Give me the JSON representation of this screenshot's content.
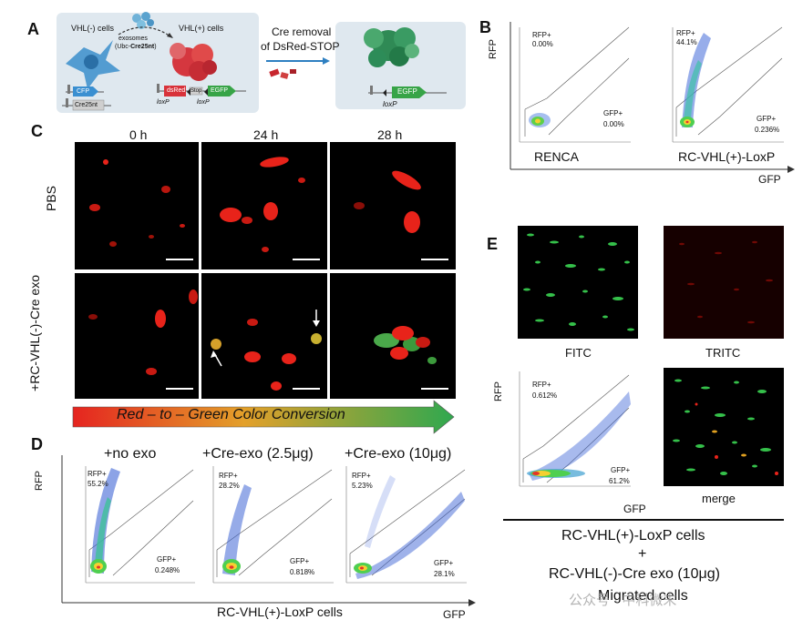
{
  "panel_letters": {
    "a": "A",
    "b": "B",
    "c": "C",
    "d": "D",
    "e": "E"
  },
  "panel_a": {
    "vhl_neg": "VHL(-) cells",
    "vhl_pos": "VHL(+) cells",
    "exosomes": "exosomes",
    "ubc_line": "(Ubc-",
    "ubc_bold": "Cre25nt",
    "ubc_close": ")",
    "cre_removal": "Cre removal",
    "of_dsred": "of DsRed-STOP",
    "cfp": "CFP",
    "cre25nt": "Cre25nt",
    "dsred": "dsRed",
    "stop": "Stop",
    "egfp": "EGFP",
    "egfp2": "EGFP",
    "loxp1": "loxP",
    "loxp2": "loxP",
    "loxp3": "loxP"
  },
  "panel_b": {
    "y_axis": "RFP",
    "x_axis": "GFP",
    "plot1": {
      "rfp_gate": "RFP+",
      "rfp_pct": "0.00%",
      "gfp_gate": "GFP+",
      "gfp_pct": "0.00%",
      "name": "RENCA"
    },
    "plot2": {
      "rfp_gate": "RFP+",
      "rfp_pct": "44.1%",
      "gfp_gate": "GFP+",
      "gfp_pct": "0.236%",
      "name": "RC-VHL(+)-LoxP"
    }
  },
  "panel_c": {
    "times": [
      "0 h",
      "24 h",
      "28 h"
    ],
    "row1": "PBS",
    "row2": "+RC-VHL(-)-Cre exo",
    "banner": "Red – to – Green Color Conversion",
    "colors": {
      "red": "#e8231a",
      "green": "#4aa84a",
      "banner_start": "#e52420",
      "banner_end": "#2fa84f"
    }
  },
  "panel_d": {
    "y_axis": "RFP",
    "x_axis": "GFP",
    "plots": [
      {
        "title": "+no exo",
        "rfp_gate": "RFP+",
        "rfp_pct": "55.2%",
        "gfp_gate": "GFP+",
        "gfp_pct": "0.248%"
      },
      {
        "title": "+Cre-exo (2.5μg)",
        "rfp_gate": "RFP+",
        "rfp_pct": "28.2%",
        "gfp_gate": "GFP+",
        "gfp_pct": "0.818%"
      },
      {
        "title": "+Cre-exo (10μg)",
        "rfp_gate": "RFP+",
        "rfp_pct": "5.23%",
        "gfp_gate": "GFP+",
        "gfp_pct": "28.1%"
      }
    ],
    "caption": "RC-VHL(+)-LoxP cells"
  },
  "panel_e": {
    "fitc": "FITC",
    "tritc": "TRITC",
    "merge": "merge",
    "y_axis": "RFP",
    "x_axis": "GFP",
    "rfp_gate": "RFP+",
    "rfp_pct": "0.612%",
    "gfp_gate": "GFP+",
    "gfp_pct": "61.2%",
    "caption_line1": "RC-VHL(+)-LoxP cells",
    "caption_plus": "+",
    "caption_line3": "RC-VHL(-)-Cre exo (10μg)",
    "caption_line4": "Migrated cells"
  },
  "axis_ticks": {
    "t0": "0",
    "t2": "10",
    "t3": "10",
    "t4": "10",
    "t5": "10",
    "e2": "2",
    "e3": "3",
    "e4": "4",
    "e5": "5"
  },
  "watermark": "公众号 · 中科微末"
}
